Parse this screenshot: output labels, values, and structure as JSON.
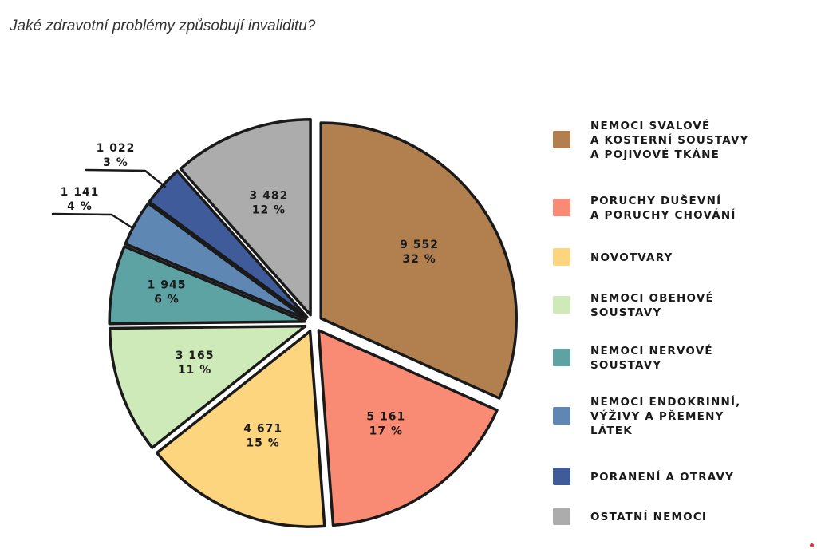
{
  "page": {
    "title": "Jaké zdravotní problémy způsobují invaliditu?"
  },
  "chart_data": {
    "type": "pie",
    "title": "Jaké zdravotní problémy způsobují invaliditu?",
    "slices": [
      {
        "name": "NEMOCI SVALOVÉ A KOSTERNÍ SOUSTAVY A POJIVOVÉ TKÁNE",
        "legend_lines": [
          "NEMOCI SVALOVÉ",
          "A KOSTERNÍ SOUSTAVY",
          "A POJIVOVÉ TKÁNE"
        ],
        "value": 9552,
        "value_label": "9 552",
        "percent": 32,
        "percent_label": "32 %",
        "color": "#b2804f"
      },
      {
        "name": "PORUCHY DUŠEVNÍ A PORUCHY CHOVÁNÍ",
        "legend_lines": [
          "PORUCHY DUŠEVNÍ",
          "A PORUCHY CHOVÁNÍ"
        ],
        "value": 5161,
        "value_label": "5 161",
        "percent": 17,
        "percent_label": "17 %",
        "color": "#f98a73"
      },
      {
        "name": "NOVOTVARY",
        "legend_lines": [
          "NOVOTVARY"
        ],
        "value": 4671,
        "value_label": "4 671",
        "percent": 15,
        "percent_label": "15 %",
        "color": "#fcd57e"
      },
      {
        "name": "NEMOCI OBEHOVÉ SOUSTAVY",
        "legend_lines": [
          "NEMOCI OBEHOVÉ",
          "SOUSTAVY"
        ],
        "value": 3165,
        "value_label": "3 165",
        "percent": 11,
        "percent_label": "11 %",
        "color": "#cdeab8"
      },
      {
        "name": "NEMOCI NERVOVÉ SOUSTAVY",
        "legend_lines": [
          "NEMOCI NERVOVÉ",
          "SOUSTAVY"
        ],
        "value": 1945,
        "value_label": "1 945",
        "percent": 6,
        "percent_label": "6 %",
        "color": "#5ea3a3"
      },
      {
        "name": "NEMOCI ENDOKRINNÍ, VÝŽIVY A PŘEMENY LÁTEK",
        "legend_lines": [
          "NEMOCI ENDOKRINNÍ,",
          "VÝŽIVY A PŘEMENY",
          "LÁTEK"
        ],
        "value": 1141,
        "value_label": "1 141",
        "percent": 4,
        "percent_label": "4 %",
        "color": "#5f87b4"
      },
      {
        "name": "PORANENÍ A OTRAVY",
        "legend_lines": [
          "PORANENÍ A OTRAVY"
        ],
        "value": 1022,
        "value_label": "1 022",
        "percent": 3,
        "percent_label": "3 %",
        "color": "#3f5b9a"
      },
      {
        "name": "OSTATNÍ NEMOCI",
        "legend_lines": [
          "OSTATNÍ NEMOCI"
        ],
        "value": 3482,
        "value_label": "3 482",
        "percent": 12,
        "percent_label": "12 %",
        "color": "#acacac"
      }
    ],
    "legend_position": "right",
    "start": "top, clockwise",
    "exploded": true
  }
}
